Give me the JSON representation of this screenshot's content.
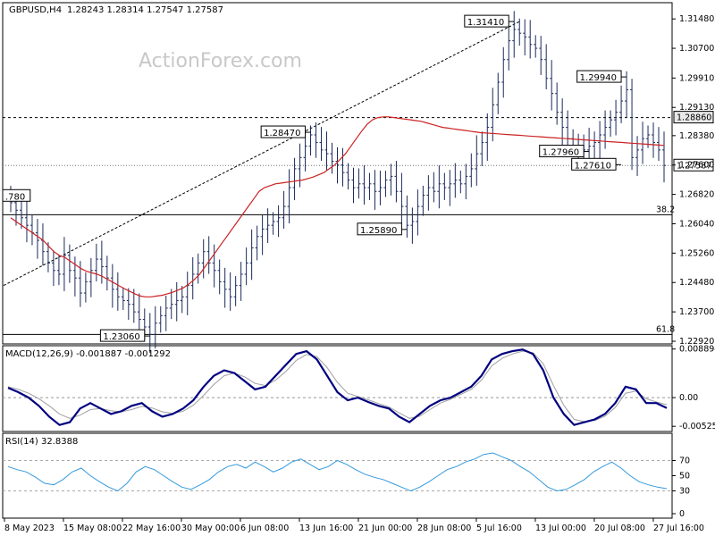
{
  "header": {
    "symbol": "GBPUSD,H4",
    "ohlc": "1.28243 1.28314 1.27547 1.27587"
  },
  "watermark": "ActionForex.com",
  "colors": {
    "candle": "#1a2a5a",
    "ema": "#cc2222",
    "macd": "#000080",
    "signal": "#a0a0a0",
    "rsi": "#3399dd",
    "price_tag_bg": "#ffffff"
  },
  "chart_data": [
    {
      "type": "candlestick",
      "name": "price",
      "ylim": [
        1.2292,
        1.3184
      ],
      "yticks": [
        "1.31480",
        "1.30700",
        "1.29910",
        "1.29130",
        "1.28380",
        "1.27600",
        "1.26820",
        "1.26040",
        "1.25260",
        "1.24480",
        "1.23700",
        "1.22920"
      ],
      "xticks": [
        "8 May 2023",
        "15 May 08:00",
        "22 May 16:00",
        "30 May 00:00",
        "6 Jun 08:00",
        "13 Jun 16:00",
        "21 Jun 00:00",
        "28 Jun 08:00",
        "5 Jul 16:00",
        "13 Jul 00:00",
        "20 Jul 08:00",
        "27 Jul 16:00"
      ],
      "swing_points": [
        {
          "label": "1.31410",
          "value": 1.3141,
          "bar": 94
        },
        {
          "label": "1.29940",
          "value": 1.2994,
          "bar": 115
        },
        {
          "label": "1.28470",
          "value": 1.2847,
          "bar": 56
        },
        {
          "label": "1.27960",
          "value": 1.2796,
          "bar": 108
        },
        {
          "label": "1.27610",
          "value": 1.2761,
          "bar": 114
        },
        {
          "label": "1.25890",
          "value": 1.2589,
          "bar": 74
        },
        {
          "label": "1.23060",
          "value": 1.2306,
          "bar": 26
        },
        {
          "label": ".780",
          "value": 1.2678,
          "bar": 0
        }
      ],
      "hlines": [
        {
          "label": "1.28860",
          "value": 1.2886,
          "style": "dashed"
        },
        {
          "label": "1.27587",
          "value": 1.27587,
          "style": "dotted"
        },
        {
          "label": "38.2",
          "value": 1.2628,
          "style": "solid"
        },
        {
          "label": "61.8",
          "value": 1.231,
          "style": "solid"
        }
      ],
      "trendline": {
        "from": [
          0,
          1.244
        ],
        "to": [
          95,
          1.3141
        ]
      },
      "closes": [
        1.266,
        1.264,
        1.262,
        1.26,
        1.258,
        1.256,
        1.253,
        1.25,
        1.248,
        1.247,
        1.252,
        1.248,
        1.246,
        1.242,
        1.245,
        1.248,
        1.251,
        1.249,
        1.246,
        1.243,
        1.241,
        1.24,
        1.239,
        1.237,
        1.235,
        1.233,
        1.231,
        1.234,
        1.236,
        1.238,
        1.239,
        1.24,
        1.241,
        1.244,
        1.247,
        1.25,
        1.253,
        1.25,
        1.248,
        1.245,
        1.243,
        1.241,
        1.244,
        1.247,
        1.25,
        1.254,
        1.257,
        1.259,
        1.26,
        1.261,
        1.262,
        1.265,
        1.27,
        1.275,
        1.278,
        1.281,
        1.284,
        1.282,
        1.28,
        1.279,
        1.277,
        1.276,
        1.274,
        1.272,
        1.27,
        1.271,
        1.27,
        1.271,
        1.269,
        1.27,
        1.272,
        1.273,
        1.269,
        1.265,
        1.26,
        1.261,
        1.265,
        1.268,
        1.27,
        1.269,
        1.271,
        1.27,
        1.271,
        1.272,
        1.271,
        1.273,
        1.275,
        1.279,
        1.282,
        1.286,
        1.292,
        1.298,
        1.304,
        1.309,
        1.312,
        1.311,
        1.31,
        1.308,
        1.307,
        1.304,
        1.299,
        1.295,
        1.29,
        1.286,
        1.283,
        1.281,
        1.279,
        1.28,
        1.281,
        1.282,
        1.284,
        1.286,
        1.288,
        1.29,
        1.293,
        1.296,
        1.278,
        1.28,
        1.283,
        1.284,
        1.282,
        1.28,
        1.2759
      ],
      "ema": [
        1.262,
        1.261,
        1.26,
        1.259,
        1.258,
        1.257,
        1.256,
        1.2545,
        1.253,
        1.252,
        1.2515,
        1.2505,
        1.2495,
        1.2485,
        1.2478,
        1.2474,
        1.247,
        1.2464,
        1.2456,
        1.2448,
        1.244,
        1.2432,
        1.2425,
        1.2418,
        1.2412,
        1.241,
        1.241,
        1.2412,
        1.2414,
        1.2418,
        1.2422,
        1.2428,
        1.2434,
        1.2444,
        1.2456,
        1.247,
        1.249,
        1.251,
        1.253,
        1.255,
        1.257,
        1.259,
        1.261,
        1.263,
        1.265,
        1.267,
        1.269,
        1.27,
        1.2705,
        1.271,
        1.2712,
        1.2714,
        1.2716,
        1.2718,
        1.272,
        1.2724,
        1.2728,
        1.2734,
        1.274,
        1.275,
        1.276,
        1.2775,
        1.279,
        1.281,
        1.283,
        1.285,
        1.2868,
        1.288,
        1.2886,
        1.2888,
        1.2888,
        1.2886,
        1.2884,
        1.2882,
        1.288,
        1.2878,
        1.2876,
        1.2872,
        1.2868,
        1.2864,
        1.286,
        1.2858,
        1.2856,
        1.2854,
        1.2852,
        1.285,
        1.2848,
        1.2846,
        1.2845,
        1.2844,
        1.2843,
        1.2842,
        1.2841,
        1.284,
        1.2839,
        1.2838,
        1.2837,
        1.2836,
        1.2835,
        1.2834,
        1.2833,
        1.2832,
        1.2831,
        1.283,
        1.2829,
        1.2828,
        1.2827,
        1.2826,
        1.2825,
        1.2824,
        1.2823,
        1.2822,
        1.2821,
        1.282,
        1.2819,
        1.2818,
        1.2817,
        1.2816,
        1.2815,
        1.2814,
        1.2813,
        1.2812
      ]
    },
    {
      "type": "line",
      "name": "macd",
      "title": "MACD(12,26,9) -0.001887 -0.001292",
      "ylim": [
        -0.0062,
        0.0095
      ],
      "yticks": [
        "0.008894",
        "0.00",
        "-0.005252"
      ],
      "macd": [
        0.0018,
        0.001,
        0.0,
        -0.0015,
        -0.0035,
        -0.005,
        -0.0045,
        -0.002,
        -0.001,
        -0.002,
        -0.003,
        -0.0025,
        -0.0015,
        -0.001,
        -0.0025,
        -0.0035,
        -0.003,
        -0.002,
        -0.0005,
        0.002,
        0.004,
        0.005,
        0.0045,
        0.003,
        0.0015,
        0.002,
        0.004,
        0.006,
        0.008,
        0.0085,
        0.007,
        0.004,
        0.001,
        -0.0005,
        0.0,
        -0.0008,
        -0.0015,
        -0.002,
        -0.0035,
        -0.0045,
        -0.003,
        -0.0015,
        -0.0005,
        0.0,
        0.001,
        0.002,
        0.004,
        0.007,
        0.008,
        0.0085,
        0.0088,
        0.008,
        0.005,
        0.0,
        -0.003,
        -0.005,
        -0.0045,
        -0.004,
        -0.003,
        -0.001,
        0.002,
        0.0015,
        -0.001,
        -0.001,
        -0.0019
      ],
      "signal": [
        0.002,
        0.0015,
        0.0008,
        -0.0002,
        -0.0015,
        -0.003,
        -0.0038,
        -0.0032,
        -0.0022,
        -0.002,
        -0.0024,
        -0.0026,
        -0.0022,
        -0.0016,
        -0.0019,
        -0.0026,
        -0.0029,
        -0.0025,
        -0.0014,
        0.0004,
        0.0024,
        0.004,
        0.0045,
        0.0038,
        0.0026,
        0.0022,
        0.0032,
        0.0048,
        0.0068,
        0.0079,
        0.0075,
        0.0055,
        0.0028,
        0.0008,
        0.0002,
        -0.0004,
        -0.0011,
        -0.0017,
        -0.0028,
        -0.0038,
        -0.0034,
        -0.0022,
        -0.001,
        -0.0003,
        0.0006,
        0.0015,
        0.0032,
        0.0058,
        0.0072,
        0.008,
        0.0085,
        0.0082,
        0.0062,
        0.0022,
        -0.0014,
        -0.004,
        -0.0044,
        -0.0042,
        -0.0034,
        -0.0018,
        0.0008,
        0.0012,
        -0.0002,
        -0.0008,
        -0.0013
      ]
    },
    {
      "type": "line",
      "name": "rsi",
      "title": "RSI(14) 32.8388",
      "ylim": [
        0,
        100
      ],
      "yticks": [
        "70",
        "50",
        "30",
        "0"
      ],
      "levels": [
        70,
        30
      ],
      "values": [
        62,
        58,
        55,
        48,
        40,
        38,
        45,
        55,
        60,
        50,
        42,
        35,
        30,
        40,
        55,
        62,
        58,
        50,
        42,
        35,
        32,
        38,
        45,
        55,
        62,
        65,
        60,
        68,
        62,
        55,
        60,
        68,
        72,
        65,
        58,
        62,
        70,
        65,
        58,
        52,
        48,
        45,
        40,
        35,
        30,
        35,
        42,
        50,
        58,
        62,
        68,
        72,
        78,
        80,
        75,
        70,
        62,
        55,
        45,
        35,
        30,
        32,
        38,
        45,
        55,
        62,
        68,
        60,
        50,
        42,
        38,
        35,
        33
      ]
    }
  ]
}
